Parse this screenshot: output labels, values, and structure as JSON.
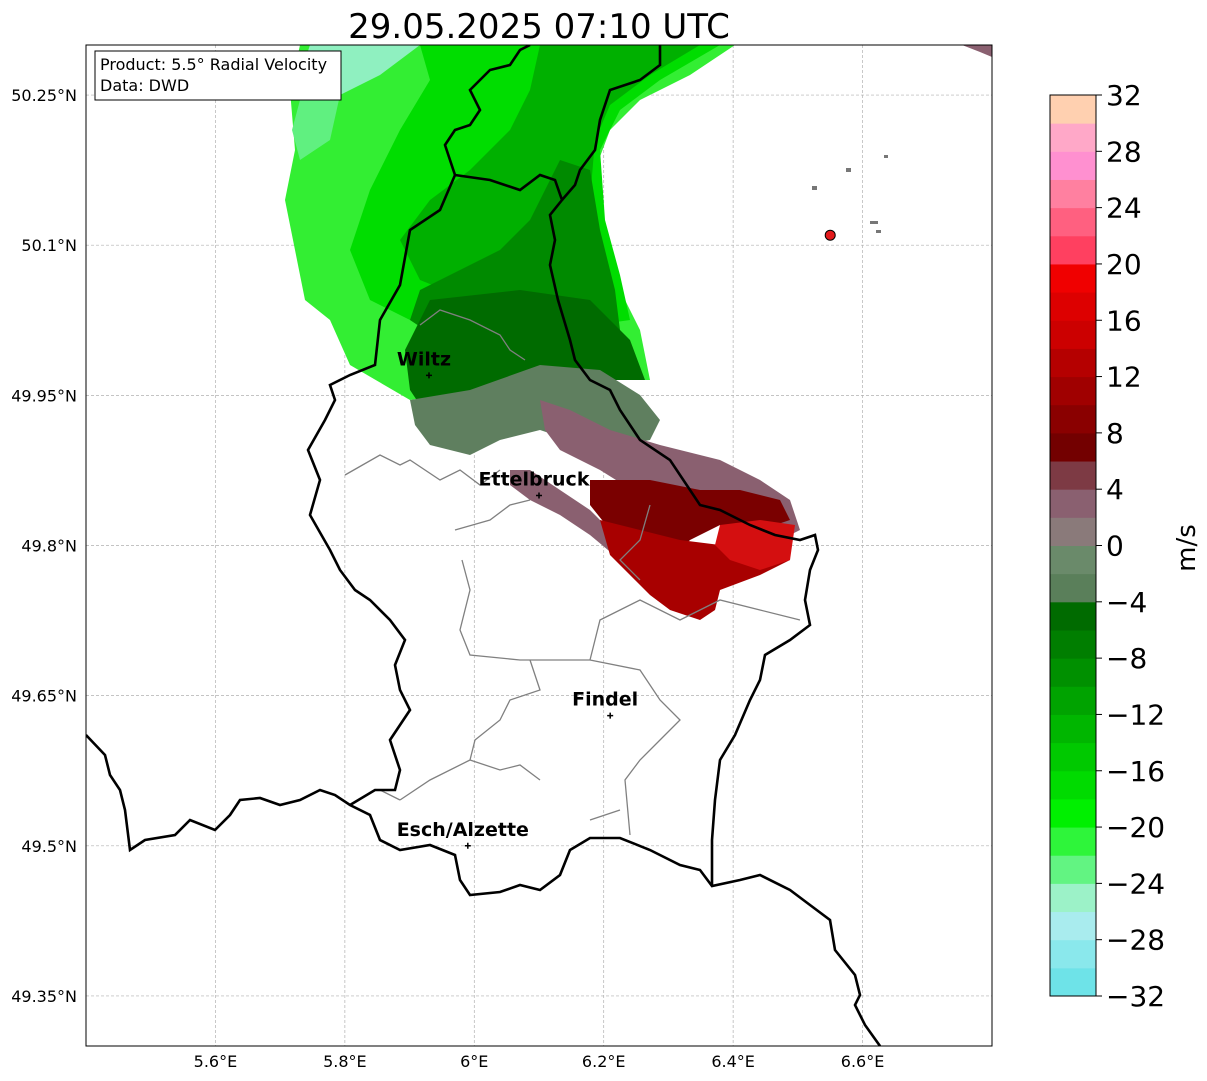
{
  "title": "29.05.2025 07:10 UTC",
  "info_box": {
    "product": "Product: 5.5° Radial Velocity",
    "data_source": "Data: DWD"
  },
  "map": {
    "lon_range": [
      5.4,
      6.8
    ],
    "lat_range": [
      49.3,
      50.3
    ],
    "lon_ticks": [
      {
        "value": 5.6,
        "label": "5.6°E"
      },
      {
        "value": 5.8,
        "label": "5.8°E"
      },
      {
        "value": 6.0,
        "label": "6°E"
      },
      {
        "value": 6.2,
        "label": "6.2°E"
      },
      {
        "value": 6.4,
        "label": "6.4°E"
      },
      {
        "value": 6.6,
        "label": "6.6°E"
      }
    ],
    "lat_ticks": [
      {
        "value": 50.25,
        "label": "50.25°N"
      },
      {
        "value": 50.1,
        "label": "50.1°N"
      },
      {
        "value": 49.95,
        "label": "49.95°N"
      },
      {
        "value": 49.8,
        "label": "49.8°N"
      },
      {
        "value": 49.65,
        "label": "49.65°N"
      },
      {
        "value": 49.5,
        "label": "49.5°N"
      },
      {
        "value": 49.35,
        "label": "49.35°N"
      }
    ],
    "gridlines": true,
    "cities": [
      {
        "name": "Wiltz",
        "lon": 5.93,
        "lat": 49.97
      },
      {
        "name": "Ettelbruck",
        "lon": 6.1,
        "lat": 49.85
      },
      {
        "name": "Findel",
        "lon": 6.21,
        "lat": 49.63
      },
      {
        "name": "Esch/Alzette",
        "lon": 5.99,
        "lat": 49.5
      }
    ],
    "radar_marker": {
      "lon": 6.55,
      "lat": 50.11,
      "color": "#e31a1c"
    }
  },
  "colorbar": {
    "label": "m/s",
    "min": -32,
    "max": 32,
    "tick_labels": [
      "32",
      "28",
      "24",
      "20",
      "16",
      "12",
      "8",
      "4",
      "0",
      "−4",
      "−8",
      "−12",
      "−16",
      "−20",
      "−24",
      "−28",
      "−32"
    ],
    "colors_bottom_to_top": [
      "#6ee3e8",
      "#8ae8ec",
      "#a9ecee",
      "#9cf2c8",
      "#62f482",
      "#2ef53a",
      "#00f000",
      "#00db00",
      "#00c900",
      "#00b600",
      "#00a300",
      "#009000",
      "#007e00",
      "#006b00",
      "#5a7f5a",
      "#6a8a6a",
      "#8a7a7a",
      "#8a6070",
      "#7d3a44",
      "#730000",
      "#8a0000",
      "#a00000",
      "#b50000",
      "#cc0000",
      "#dd0000",
      "#f00000",
      "#ff4060",
      "#ff6080",
      "#ff80a0",
      "#ff90d0",
      "#ffa8c8",
      "#ffd0b0"
    ]
  }
}
